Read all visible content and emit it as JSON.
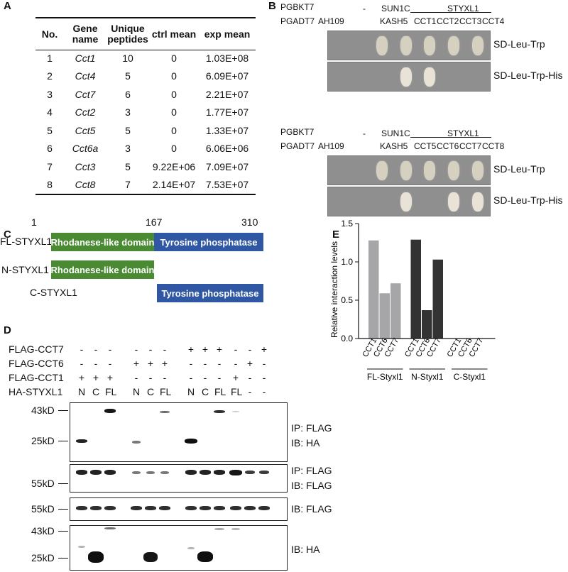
{
  "panels": {
    "a": "A",
    "b": "B",
    "c": "C",
    "d": "D",
    "e": "E"
  },
  "table": {
    "headers": [
      "No.",
      "Gene name",
      "Unique peptides",
      "ctrl mean",
      "exp mean"
    ],
    "rows": [
      [
        "1",
        "Cct1",
        "10",
        "0",
        "1.03E+08"
      ],
      [
        "2",
        "Cct4",
        "5",
        "0",
        "6.09E+07"
      ],
      [
        "3",
        "Cct7",
        "6",
        "0",
        "2.21E+07"
      ],
      [
        "4",
        "Cct2",
        "3",
        "0",
        "1.77E+07"
      ],
      [
        "5",
        "Cct5",
        "5",
        "0",
        "1.33E+07"
      ],
      [
        "6",
        "Cct6a",
        "3",
        "0",
        "6.06E+06"
      ],
      [
        "7",
        "Cct3",
        "5",
        "9.22E+06",
        "7.09E+07"
      ],
      [
        "8",
        "Cct8",
        "7",
        "2.14E+07",
        "7.53E+07"
      ]
    ]
  },
  "y2h": {
    "bait_label": "PGBKT7",
    "prey_label": "PGADT7",
    "dash": "-",
    "sun1c": "SUN1C",
    "styxl1": "STYXL1",
    "ah109": "AH109",
    "kash5": "KASH5",
    "blocks": [
      {
        "preys": [
          "CCT1",
          "CCT2",
          "CCT3",
          "CCT4"
        ],
        "media": [
          "SD-Leu-Trp",
          "SD-Leu-Trp-His"
        ]
      },
      {
        "preys": [
          "CCT5",
          "CCT6",
          "CCT7",
          "CCT8"
        ],
        "media": [
          "SD-Leu-Trp",
          "SD-Leu-Trp-His"
        ]
      }
    ]
  },
  "domains": {
    "ticks": [
      "1",
      "167",
      "310"
    ],
    "constructs": [
      "FL-STYXL1",
      "N-STYXL1",
      "C-STYXL1"
    ],
    "rhodanese": "Rhodanese-like domain",
    "tyrosine": "Tyrosine phosphatase",
    "colors": {
      "rhodanese": "#4a8a33",
      "tyrosine": "#2f57a3"
    }
  },
  "coip": {
    "row_labels": [
      "FLAG-CCT7",
      "FLAG-CCT6",
      "FLAG-CCT1",
      "HA-STYXL1"
    ],
    "lanes": [
      [
        "-",
        "-",
        "+",
        "N"
      ],
      [
        "-",
        "-",
        "+",
        "C"
      ],
      [
        "-",
        "-",
        "+",
        "FL"
      ],
      [
        "-",
        "+",
        "-",
        "N"
      ],
      [
        "-",
        "+",
        "-",
        "C"
      ],
      [
        "-",
        "+",
        "-",
        "FL"
      ],
      [
        "+",
        "-",
        "-",
        "N"
      ],
      [
        "+",
        "-",
        "-",
        "C"
      ],
      [
        "+",
        "-",
        "-",
        "FL"
      ],
      [
        "-",
        "-",
        "+",
        "FL"
      ],
      [
        "-",
        "+",
        "-",
        "-"
      ],
      [
        "+",
        "-",
        "-",
        "-"
      ]
    ],
    "markers": {
      "m43": "43kD",
      "m25": "25kD",
      "m55": "55kD"
    },
    "blot_labels": {
      "b1": [
        "IP: FLAG",
        "IB: HA"
      ],
      "b2": [
        "IP: FLAG",
        "IB: FLAG"
      ],
      "b3": [
        "IB: FLAG"
      ],
      "b4": [
        "IB: HA"
      ]
    }
  },
  "chart_data": {
    "type": "bar",
    "ylabel": "Relative interaction levels",
    "ylim": [
      0,
      1.5
    ],
    "yticks": [
      "0.0",
      "0.5",
      "1.0",
      "1.5"
    ],
    "groups": [
      {
        "name": "FL-Styxl1",
        "color": "#a6a6a8",
        "categories": [
          "CCT1",
          "CCT6",
          "CCT7"
        ],
        "values": [
          1.28,
          0.59,
          0.72
        ]
      },
      {
        "name": "N-Styxl1",
        "color": "#333333",
        "categories": [
          "CCT1",
          "CCT6",
          "CCT7"
        ],
        "values": [
          1.29,
          0.37,
          1.03
        ]
      },
      {
        "name": "C-Styxl1",
        "color": "#333333",
        "categories": [
          "CCT1",
          "CCT6",
          "CCT7"
        ],
        "values": [
          0,
          0,
          0
        ]
      }
    ]
  }
}
